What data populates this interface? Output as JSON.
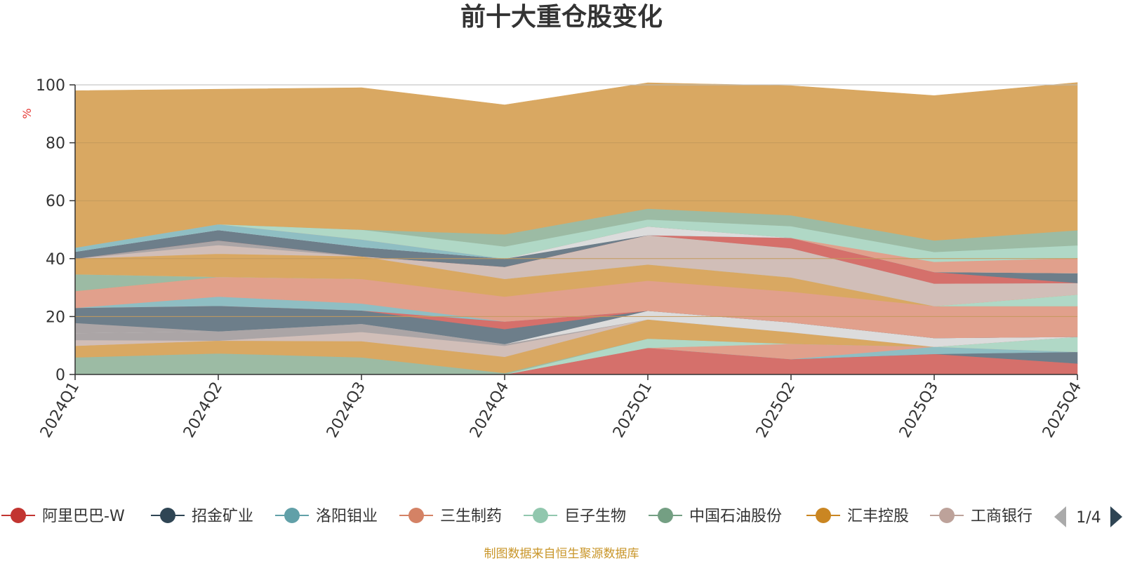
{
  "title": "前十大重仓股变化",
  "source_note": "制图数据来自恒生聚源数据库",
  "legend_page": "1/4",
  "colors": {
    "axis": "#333333",
    "grid": "#c8a060",
    "unit": "#e53935",
    "pager_disabled": "#aaaaaa",
    "pager_active": "#2f4554",
    "source": "#c9962a"
  },
  "chart_data": {
    "type": "area",
    "stacked": true,
    "ylabel": "%",
    "ylim": [
      0,
      100
    ],
    "y_ticks": [
      0,
      20,
      40,
      60,
      80,
      100
    ],
    "grid": true,
    "legend_position": "bottom",
    "categories": [
      "2024Q1",
      "2024Q2",
      "2024Q3",
      "2024Q4",
      "2025Q1",
      "2025Q2",
      "2025Q3",
      "2025Q4"
    ],
    "series": [
      {
        "name": "阿里巴巴-W",
        "color": "#c23531",
        "values": [
          0,
          0,
          0,
          0,
          9.2,
          5.3,
          7.1,
          3.8
        ],
        "layer_color": "#d5706b"
      },
      {
        "name": "招金矿业",
        "color": "#2f4554",
        "values": [
          0,
          0,
          0,
          0,
          0,
          0,
          0,
          4.0
        ],
        "layer_color": "#6d7e8a"
      },
      {
        "name": "洛阳钼业",
        "color": "#61a0a8",
        "values": [
          0,
          0,
          0,
          0,
          0,
          0,
          2.5,
          0
        ],
        "layer_color": "#8fbec3"
      },
      {
        "name": "三生制药",
        "color": "#d48265",
        "values": [
          0,
          0,
          0,
          0,
          0,
          5.3,
          0,
          0
        ],
        "layer_color": "#e1a08c"
      },
      {
        "name": "巨子生物",
        "color": "#91c7ae",
        "values": [
          0,
          0,
          0,
          0,
          3.2,
          0,
          0,
          5.2
        ],
        "layer_color": "#b0d8c6"
      },
      {
        "name": "中国石油股份",
        "color": "#749f83",
        "values": [
          5.9,
          7.3,
          5.9,
          0.5,
          0,
          0,
          0,
          0
        ],
        "layer_color": "#9cbba4"
      },
      {
        "name": "汇丰控股",
        "color": "#ca8622",
        "values": [
          4.0,
          4.4,
          5.6,
          5.6,
          6.6,
          4.0,
          0,
          0
        ],
        "layer_color": "#d9a862"
      },
      {
        "name": "工商银行",
        "color": "#bda29a",
        "values": [
          2.0,
          0,
          3.2,
          3.8,
          0,
          0,
          0,
          0
        ],
        "layer_color": "#d1beb8"
      }
    ],
    "extra_layers": [
      {
        "color": "#aba5a6",
        "values": [
          2.4,
          3.2,
          2.8,
          0.6,
          0,
          0,
          0,
          0
        ]
      },
      {
        "color": "#dcdcdc",
        "values": [
          0,
          0,
          0,
          0,
          3.0,
          3.4,
          3.0,
          0
        ]
      },
      {
        "color": "#aba5a6",
        "values": [
          3.5,
          0,
          0,
          0,
          0,
          0,
          0,
          0
        ]
      },
      {
        "color": "#6d7e8a",
        "values": [
          5.2,
          8.8,
          4.6,
          5.2,
          0,
          0,
          0,
          0
        ]
      },
      {
        "color": "#d5706b",
        "values": [
          0,
          0,
          0,
          2.6,
          0,
          0,
          0,
          0
        ]
      },
      {
        "color": "#8fbec3",
        "values": [
          0,
          3.2,
          2.4,
          0,
          0,
          0,
          0,
          0
        ]
      },
      {
        "color": "#e1a08c",
        "values": [
          5.8,
          6.8,
          8.5,
          8.6,
          10.4,
          10.6,
          11.0,
          10.6
        ]
      },
      {
        "color": "#d9a862",
        "values": [
          0,
          0,
          0,
          6.1,
          5.6,
          4.9,
          0,
          0
        ]
      },
      {
        "color": "#9cbba4",
        "values": [
          5.8,
          0,
          0,
          0,
          0,
          0,
          0,
          0
        ]
      },
      {
        "color": "#b0d8c6",
        "values": [
          0,
          0,
          0,
          0,
          0,
          0,
          0,
          4.0
        ]
      },
      {
        "color": "#d9a862",
        "values": [
          5.4,
          8.0,
          7.8,
          0,
          0,
          0,
          0,
          0
        ]
      },
      {
        "color": "#d1beb8",
        "values": [
          0,
          3.0,
          0,
          4.2,
          10.1,
          10.1,
          7.8,
          4.0
        ]
      },
      {
        "color": "#aba5a6",
        "values": [
          0,
          1.6,
          0,
          0,
          0,
          0,
          0,
          0
        ]
      },
      {
        "color": "#d5706b",
        "values": [
          0,
          0,
          0,
          0,
          0,
          3.6,
          4.0,
          0
        ]
      },
      {
        "color": "#6d7e8a",
        "values": [
          2.4,
          3.6,
          3.2,
          2.8,
          0,
          0,
          0,
          3.4
        ]
      },
      {
        "color": "#dcdcdc",
        "values": [
          0,
          0,
          0,
          0,
          3.0,
          0,
          0,
          0
        ]
      },
      {
        "color": "#8fbec3",
        "values": [
          1.4,
          2.0,
          2.6,
          0,
          0,
          0,
          0,
          0
        ]
      },
      {
        "color": "#e1a08c",
        "values": [
          0,
          0,
          0,
          0,
          0,
          0,
          3.5,
          5.2
        ]
      },
      {
        "color": "#b0d8c6",
        "values": [
          0,
          0,
          3.4,
          4.2,
          2.4,
          4.0,
          3.4,
          4.4
        ]
      },
      {
        "color": "#9cbba4",
        "values": [
          0,
          0,
          0,
          4.2,
          3.8,
          3.8,
          4.0,
          5.2
        ]
      },
      {
        "color": "#d9a862",
        "values": [
          54.2,
          46.6,
          49.0,
          44.7,
          43.4,
          44.7,
          50.0,
          51.0
        ]
      }
    ]
  }
}
